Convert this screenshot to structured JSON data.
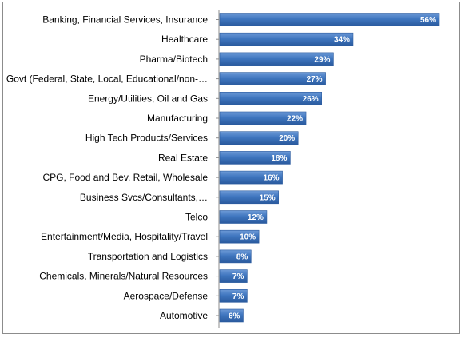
{
  "chart_data": {
    "type": "bar",
    "orientation": "horizontal",
    "title": "",
    "xlabel": "",
    "ylabel": "",
    "xlim": [
      0,
      60
    ],
    "grid": false,
    "legend": "none",
    "bar_color": "#3a6fb5",
    "bar_color_light": "#6d9ad6",
    "categories": [
      "Banking, Financial Services, Insurance",
      "Healthcare",
      "Pharma/Biotech",
      "Govt (Federal, State, Local, Educational/non-…",
      "Energy/Utilities, Oil and Gas",
      "Manufacturing",
      "High Tech Products/Services",
      "Real Estate",
      "CPG, Food and Bev, Retail, Wholesale",
      "Business Svcs/Consultants,…",
      "Telco",
      "Entertainment/Media, Hospitality/Travel",
      "Transportation and Logistics",
      "Chemicals, Minerals/Natural Resources",
      "Aerospace/Defense",
      "Automotive"
    ],
    "values": [
      56,
      34,
      29,
      27,
      26,
      22,
      20,
      18,
      16,
      15,
      12,
      10,
      8,
      7,
      7,
      6
    ],
    "value_labels": [
      "56%",
      "34%",
      "29%",
      "27%",
      "26%",
      "22%",
      "20%",
      "18%",
      "16%",
      "15%",
      "12%",
      "10%",
      "8%",
      "7%",
      "7%",
      "6%"
    ]
  }
}
